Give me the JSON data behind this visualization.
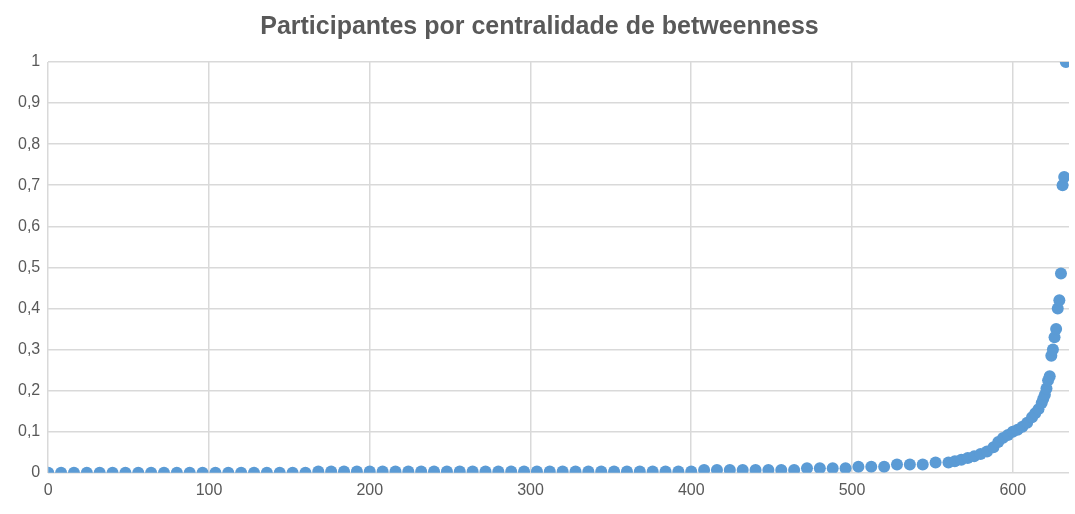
{
  "chart_data": {
    "type": "scatter",
    "title": "Participantes por centralidade de betweenness",
    "marker": "circle",
    "grid": true,
    "legend": false,
    "series": [
      {
        "color": "#5b9bd5",
        "x": [
          0,
          8,
          16,
          24,
          32,
          40,
          48,
          56,
          64,
          72,
          80,
          88,
          96,
          104,
          112,
          120,
          128,
          136,
          144,
          152,
          160,
          168,
          176,
          184,
          192,
          200,
          208,
          216,
          224,
          232,
          240,
          248,
          256,
          264,
          272,
          280,
          288,
          296,
          304,
          312,
          320,
          328,
          336,
          344,
          352,
          360,
          368,
          376,
          384,
          392,
          400,
          408,
          416,
          424,
          432,
          440,
          448,
          456,
          464,
          472,
          480,
          488,
          496,
          504,
          512,
          520,
          528,
          536,
          544,
          552,
          560,
          564,
          568,
          572,
          576,
          580,
          584,
          588,
          591,
          594,
          597,
          600,
          603,
          606,
          609,
          612,
          614,
          616,
          618,
          619,
          620,
          621,
          622,
          623,
          624,
          625,
          626,
          627,
          628,
          629,
          630,
          631,
          632,
          633
        ],
        "values": [
          0,
          0,
          0,
          0,
          0,
          0,
          0,
          0,
          0,
          0,
          0,
          0,
          0,
          0,
          0,
          0,
          0,
          0,
          0,
          0,
          0,
          0.003,
          0.003,
          0.003,
          0.003,
          0.003,
          0.003,
          0.003,
          0.003,
          0.003,
          0.003,
          0.003,
          0.003,
          0.003,
          0.003,
          0.003,
          0.003,
          0.003,
          0.003,
          0.003,
          0.003,
          0.003,
          0.003,
          0.003,
          0.003,
          0.003,
          0.003,
          0.003,
          0.003,
          0.003,
          0.003,
          0.007,
          0.007,
          0.007,
          0.007,
          0.007,
          0.007,
          0.007,
          0.007,
          0.011,
          0.011,
          0.011,
          0.011,
          0.015,
          0.015,
          0.015,
          0.02,
          0.02,
          0.02,
          0.025,
          0.025,
          0.028,
          0.032,
          0.036,
          0.04,
          0.046,
          0.052,
          0.062,
          0.075,
          0.085,
          0.092,
          0.1,
          0.105,
          0.112,
          0.122,
          0.135,
          0.145,
          0.155,
          0.17,
          0.18,
          0.19,
          0.205,
          0.225,
          0.235,
          0.285,
          0.3,
          0.33,
          0.35,
          0.4,
          0.42,
          0.485,
          0.7,
          0.72,
          1
        ]
      }
    ],
    "xlim": [
      0,
      635
    ],
    "xticks": [
      0,
      100,
      200,
      300,
      400,
      500,
      600
    ],
    "ylim": [
      0,
      1
    ],
    "yticks": [
      0,
      {
        "value": 0.1,
        "label": "0,1"
      },
      {
        "value": 0.2,
        "label": "0,2"
      },
      {
        "value": 0.3,
        "label": "0,3"
      },
      {
        "value": 0.4,
        "label": "0,4"
      },
      {
        "value": 0.5,
        "label": "0,5"
      },
      {
        "value": 0.6,
        "label": "0,6"
      },
      {
        "value": 0.7,
        "label": "0,7"
      },
      {
        "value": 0.8,
        "label": "0,8"
      },
      {
        "value": 0.9,
        "label": "0,9"
      },
      1
    ]
  }
}
